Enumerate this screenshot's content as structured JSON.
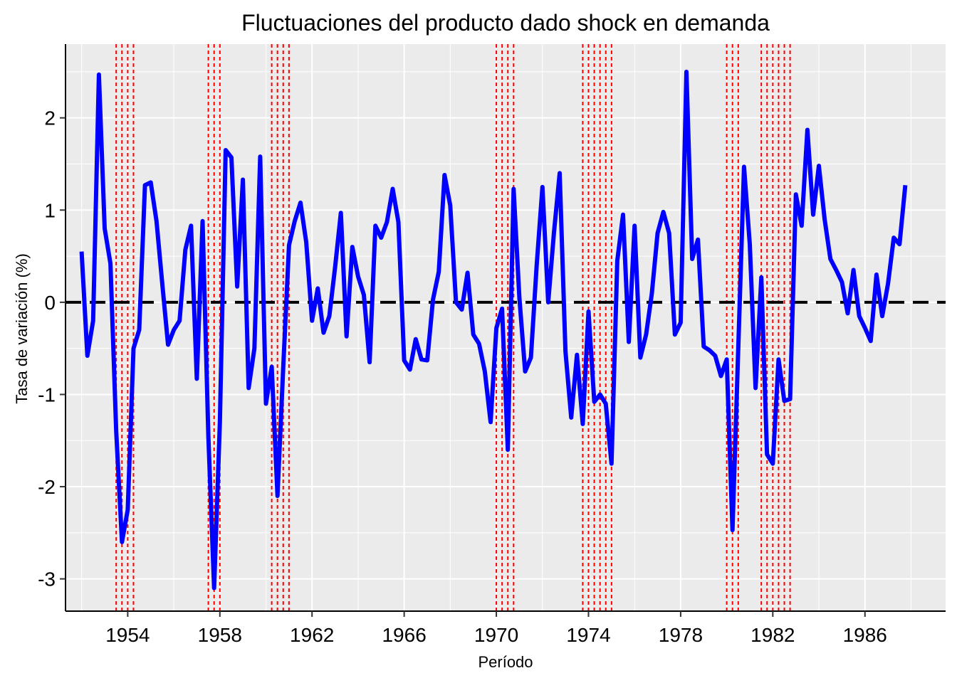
{
  "chart_data": {
    "type": "line",
    "title": "Fluctuaciones del producto dado shock en demanda",
    "xlabel": "Período",
    "ylabel": "Tasa de variación (%)",
    "xlim": [
      1951.3,
      1989.5
    ],
    "ylim": [
      -3.35,
      2.8
    ],
    "x_ticks": [
      1954,
      1958,
      1962,
      1966,
      1970,
      1974,
      1978,
      1982,
      1986
    ],
    "y_ticks": [
      -3,
      -2,
      -1,
      0,
      1,
      2
    ],
    "grid": true,
    "background": "#EBEBEB",
    "reference_line": {
      "y": 0,
      "style": "dashed",
      "color": "#000000"
    },
    "series": [
      {
        "color": "#0000FF",
        "x": [
          1952.0,
          1952.25,
          1952.5,
          1952.75,
          1953.0,
          1953.25,
          1953.5,
          1953.75,
          1954.0,
          1954.25,
          1954.5,
          1954.75,
          1955.0,
          1955.25,
          1955.5,
          1955.75,
          1956.0,
          1956.25,
          1956.5,
          1956.75,
          1957.0,
          1957.25,
          1957.5,
          1957.75,
          1958.0,
          1958.25,
          1958.5,
          1958.75,
          1959.0,
          1959.25,
          1959.5,
          1959.75,
          1960.0,
          1960.25,
          1960.5,
          1960.75,
          1961.0,
          1961.25,
          1961.5,
          1961.75,
          1962.0,
          1962.25,
          1962.5,
          1962.75,
          1963.0,
          1963.25,
          1963.5,
          1963.75,
          1964.0,
          1964.25,
          1964.5,
          1964.75,
          1965.0,
          1965.25,
          1965.5,
          1965.75,
          1966.0,
          1966.25,
          1966.5,
          1966.75,
          1967.0,
          1967.25,
          1967.5,
          1967.75,
          1968.0,
          1968.25,
          1968.5,
          1968.75,
          1969.0,
          1969.25,
          1969.5,
          1969.75,
          1970.0,
          1970.25,
          1970.5,
          1970.75,
          1971.0,
          1971.25,
          1971.5,
          1971.75,
          1972.0,
          1972.25,
          1972.5,
          1972.75,
          1973.0,
          1973.25,
          1973.5,
          1973.75,
          1974.0,
          1974.25,
          1974.5,
          1974.75,
          1975.0,
          1975.25,
          1975.5,
          1975.75,
          1976.0,
          1976.25,
          1976.5,
          1976.75,
          1977.0,
          1977.25,
          1977.5,
          1977.75,
          1978.0,
          1978.25,
          1978.5,
          1978.75,
          1979.0,
          1979.25,
          1979.5,
          1979.75,
          1980.0,
          1980.25,
          1980.5,
          1980.75,
          1981.0,
          1981.25,
          1981.5,
          1981.75,
          1982.0,
          1982.25,
          1982.5,
          1982.75,
          1983.0,
          1983.25,
          1983.5,
          1983.75,
          1984.0,
          1984.25,
          1984.5,
          1984.75,
          1985.0,
          1985.25,
          1985.5,
          1985.75,
          1986.0,
          1986.25,
          1986.5,
          1986.75,
          1987.0,
          1987.25,
          1987.5,
          1987.75
        ],
        "y": [
          0.55,
          -0.58,
          -0.2,
          2.47,
          0.8,
          0.42,
          -1.4,
          -2.6,
          -2.25,
          -0.5,
          -0.3,
          1.27,
          1.3,
          0.88,
          0.2,
          -0.46,
          -0.3,
          -0.2,
          0.57,
          0.83,
          -0.83,
          0.88,
          -1.45,
          -3.1,
          -1.3,
          1.65,
          1.57,
          0.17,
          1.33,
          -0.93,
          -0.5,
          1.58,
          -1.1,
          -0.7,
          -2.1,
          -0.7,
          0.62,
          0.88,
          1.08,
          0.65,
          -0.2,
          0.15,
          -0.33,
          -0.15,
          0.38,
          0.97,
          -0.37,
          0.6,
          0.28,
          0.08,
          -0.65,
          0.83,
          0.7,
          0.87,
          1.23,
          0.87,
          -0.63,
          -0.73,
          -0.4,
          -0.62,
          -0.63,
          0.03,
          0.33,
          1.38,
          1.05,
          0.0,
          -0.08,
          0.32,
          -0.35,
          -0.45,
          -0.75,
          -1.3,
          -0.28,
          -0.07,
          -1.6,
          1.23,
          0.05,
          -0.75,
          -0.6,
          0.4,
          1.25,
          0.0,
          0.75,
          1.4,
          -0.53,
          -1.25,
          -0.57,
          -1.32,
          -0.1,
          -1.08,
          -1.0,
          -1.1,
          -1.75,
          0.45,
          0.95,
          -0.43,
          0.83,
          -0.6,
          -0.35,
          0.1,
          0.75,
          0.98,
          0.75,
          -0.35,
          -0.22,
          2.5,
          0.47,
          0.68,
          -0.48,
          -0.52,
          -0.58,
          -0.8,
          -0.62,
          -2.47,
          -0.5,
          1.47,
          0.63,
          -0.93,
          0.27,
          -1.65,
          -1.75,
          -0.62,
          -1.07,
          -1.05,
          1.17,
          0.83,
          1.87,
          0.95,
          1.48,
          0.9,
          0.47,
          0.35,
          0.22,
          -0.12,
          0.35,
          -0.15,
          -0.28,
          -0.42,
          0.3,
          -0.15,
          0.2,
          0.7,
          0.63,
          1.27
        ]
      }
    ],
    "recession_lines": {
      "color": "#FF0000",
      "style": "dotted",
      "x": [
        1953.5,
        1953.75,
        1954.0,
        1954.25,
        1957.5,
        1957.75,
        1958.0,
        1960.25,
        1960.5,
        1960.75,
        1961.0,
        1970.0,
        1970.25,
        1970.5,
        1970.75,
        1973.75,
        1974.0,
        1974.25,
        1974.5,
        1974.75,
        1975.0,
        1980.0,
        1980.25,
        1980.5,
        1981.5,
        1981.75,
        1982.0,
        1982.25,
        1982.5,
        1982.75
      ]
    }
  }
}
